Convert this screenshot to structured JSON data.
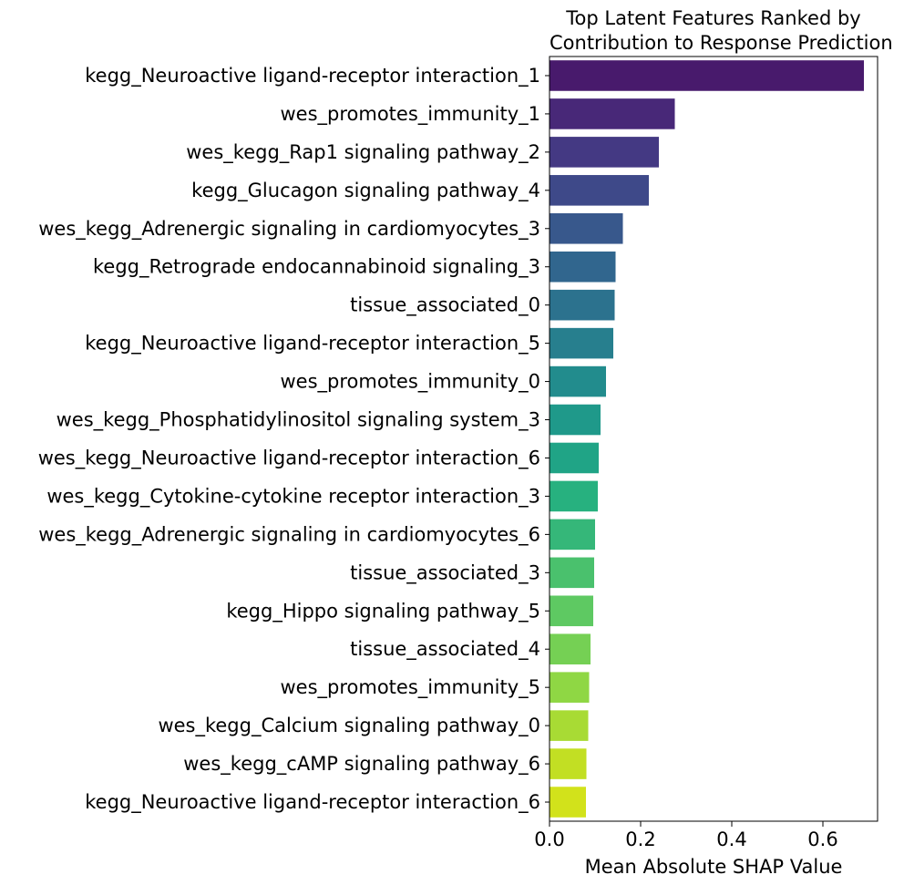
{
  "chart_data": {
    "type": "bar",
    "orientation": "horizontal",
    "title_lines": [
      "Top Latent Features Ranked by",
      "Contribution to Response Prediction"
    ],
    "xlabel": "Mean Absolute SHAP Value",
    "ylabel": "",
    "xlim": [
      0,
      0.72
    ],
    "xticks": [
      0.0,
      0.2,
      0.4,
      0.6
    ],
    "xtick_labels": [
      "0.0",
      "0.2",
      "0.4",
      "0.6"
    ],
    "grid": false,
    "colormap": "viridis",
    "categories": [
      "kegg_Neuroactive ligand-receptor interaction_1",
      "wes_promotes_immunity_1",
      "wes_kegg_Rap1 signaling pathway_2",
      "kegg_Glucagon signaling pathway_4",
      "wes_kegg_Adrenergic signaling in cardiomyocytes_3",
      "kegg_Retrograde endocannabinoid signaling_3",
      "tissue_associated_0",
      "kegg_Neuroactive ligand-receptor interaction_5",
      "wes_promotes_immunity_0",
      "wes_kegg_Phosphatidylinositol signaling system_3",
      "wes_kegg_Neuroactive ligand-receptor interaction_6",
      "wes_kegg_Cytokine-cytokine receptor interaction_3",
      "wes_kegg_Adrenergic signaling in cardiomyocytes_6",
      "tissue_associated_3",
      "kegg_Hippo signaling pathway_5",
      "tissue_associated_4",
      "wes_promotes_immunity_5",
      "wes_kegg_Calcium signaling pathway_0",
      "wes_kegg_cAMP signaling pathway_6",
      "kegg_Neuroactive ligand-receptor interaction_6"
    ],
    "values": [
      0.69,
      0.275,
      0.24,
      0.218,
      0.161,
      0.145,
      0.143,
      0.14,
      0.124,
      0.112,
      0.108,
      0.106,
      0.1,
      0.098,
      0.096,
      0.09,
      0.087,
      0.085,
      0.081,
      0.08
    ],
    "colors": [
      "#481a6c",
      "#482878",
      "#443983",
      "#3e4989",
      "#38588c",
      "#31668e",
      "#2c728e",
      "#277f8e",
      "#228c8d",
      "#1f998a",
      "#20a486",
      "#27b17f",
      "#35b779",
      "#4ac16d",
      "#5ec962",
      "#75d054",
      "#8fd744",
      "#a8db34",
      "#c2df23",
      "#d2e21b"
    ]
  }
}
